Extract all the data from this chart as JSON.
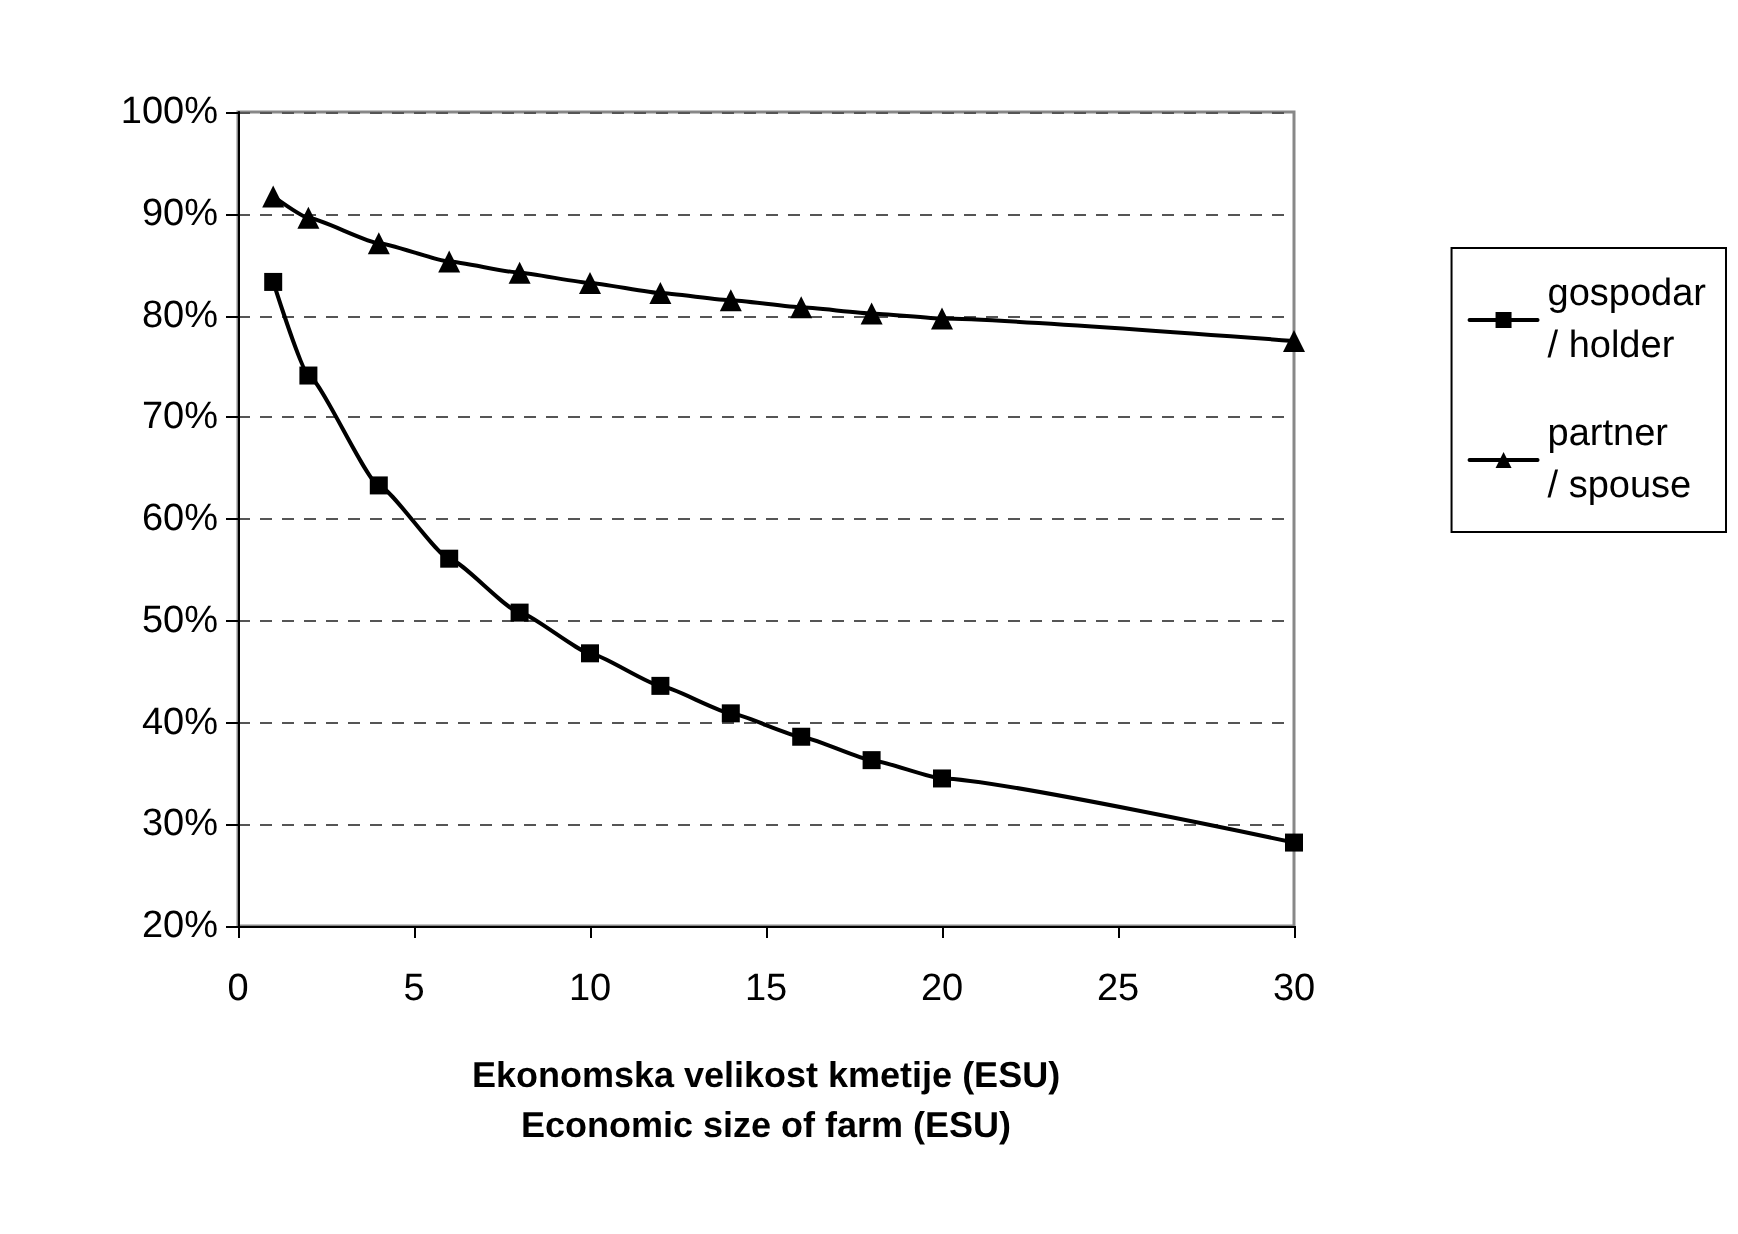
{
  "chart_data": {
    "type": "line",
    "xlabel": "Ekonomska velikost kmetije (ESU)\nEconomic size of farm (ESU)",
    "x": [
      1,
      2,
      4,
      6,
      8,
      10,
      12,
      14,
      16,
      18,
      20,
      30
    ],
    "series": [
      {
        "name": "gospodar\n/ holder",
        "color": "#000000",
        "marker": "square",
        "values": [
          83.3,
          74.1,
          63.3,
          56.1,
          50.8,
          46.8,
          43.6,
          40.9,
          38.6,
          36.3,
          34.5,
          28.2
        ]
      },
      {
        "name": "partner\n/ spouse",
        "color": "#000000",
        "marker": "triangle",
        "values": [
          91.7,
          89.6,
          87.1,
          85.3,
          84.2,
          83.2,
          82.2,
          81.5,
          80.8,
          80.2,
          79.7,
          77.5
        ]
      }
    ],
    "xlim": [
      0,
      30
    ],
    "xticks": [
      0,
      5,
      10,
      15,
      20,
      25,
      30
    ],
    "ylim": [
      20,
      100
    ],
    "yticks": [
      {
        "value": 20,
        "label": "20%"
      },
      {
        "value": 30,
        "label": "30%"
      },
      {
        "value": 40,
        "label": "40%"
      },
      {
        "value": 50,
        "label": "50%"
      },
      {
        "value": 60,
        "label": "60%"
      },
      {
        "value": 70,
        "label": "70%"
      },
      {
        "value": 80,
        "label": "80%"
      },
      {
        "value": 90,
        "label": "90%"
      },
      {
        "value": 100,
        "label": "100%"
      }
    ],
    "grid": "y",
    "legend": "right",
    "line_style": "solid"
  }
}
